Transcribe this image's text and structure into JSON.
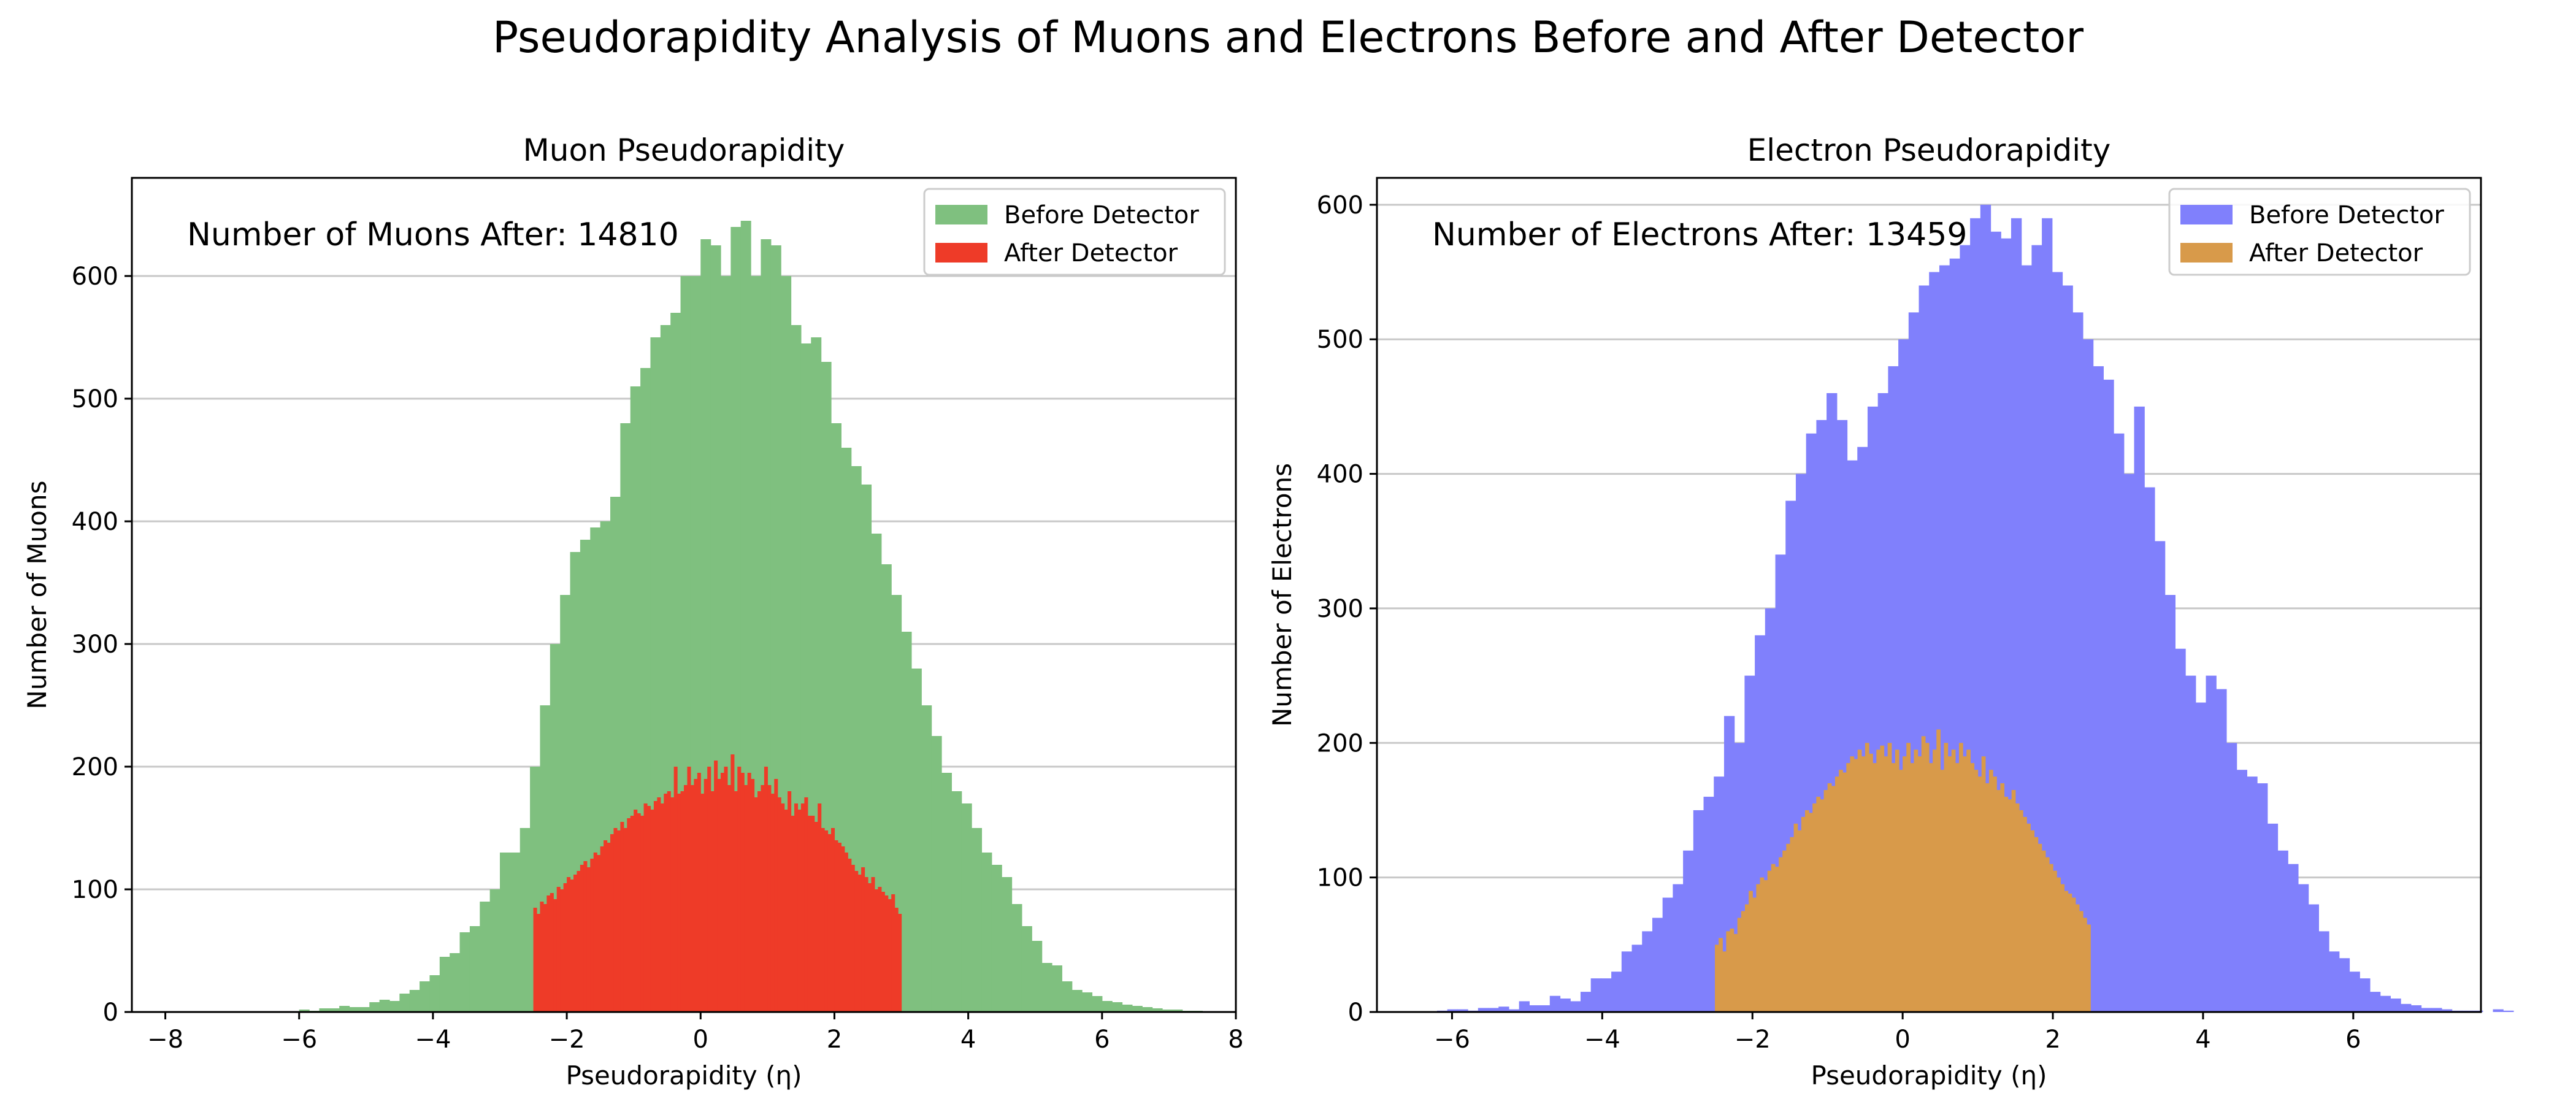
{
  "title": "Pseudorapidity Analysis of Muons and Electrons Before and After Detector",
  "chart_data": [
    {
      "type": "bar",
      "title": "Muon Pseudorapidity",
      "xlabel": "Pseudorapidity (η)",
      "ylabel": "Number of Muons",
      "xlim": [
        -8.5,
        8.0
      ],
      "ylim": [
        0,
        680
      ],
      "xticks": [
        -8,
        -6,
        -4,
        -2,
        0,
        2,
        4,
        6,
        8
      ],
      "yticks": [
        0,
        100,
        200,
        300,
        400,
        500,
        600
      ],
      "xtick_labels": [
        "−8",
        "−6",
        "−4",
        "−2",
        "0",
        "2",
        "4",
        "6",
        "8"
      ],
      "ytick_labels": [
        "0",
        "100",
        "200",
        "300",
        "400",
        "500",
        "600"
      ],
      "grid": "horizontal",
      "legend_position": "upper right",
      "annotation": "Number of Muons After: 14810",
      "series": [
        {
          "name": "Before Detector",
          "color": "#7fc07f",
          "bin_start": -6.0,
          "bin_width": 0.15,
          "values": [
            2,
            1,
            3,
            3,
            5,
            4,
            4,
            8,
            10,
            9,
            15,
            18,
            25,
            30,
            45,
            48,
            65,
            70,
            90,
            100,
            130,
            130,
            150,
            200,
            250,
            300,
            340,
            375,
            385,
            395,
            400,
            420,
            480,
            510,
            525,
            550,
            560,
            570,
            600,
            600,
            630,
            625,
            600,
            640,
            645,
            600,
            630,
            625,
            600,
            560,
            545,
            550,
            530,
            480,
            460,
            445,
            430,
            390,
            365,
            340,
            310,
            280,
            250,
            225,
            195,
            180,
            170,
            150,
            130,
            120,
            110,
            88,
            70,
            58,
            40,
            38,
            25,
            18,
            16,
            13,
            9,
            8,
            6,
            5,
            4,
            3,
            2,
            2,
            1,
            1
          ]
        },
        {
          "name": "After Detector",
          "color": "#ee3b28",
          "bin_start": -2.5,
          "bin_width": 0.05,
          "values": [
            85,
            80,
            90,
            88,
            95,
            97,
            92,
            102,
            100,
            105,
            110,
            108,
            112,
            115,
            120,
            123,
            118,
            125,
            130,
            128,
            135,
            140,
            138,
            145,
            150,
            148,
            155,
            150,
            158,
            160,
            165,
            162,
            160,
            170,
            168,
            165,
            172,
            175,
            170,
            178,
            180,
            175,
            200,
            178,
            180,
            185,
            200,
            185,
            190,
            195,
            178,
            190,
            200,
            180,
            205,
            190,
            195,
            200,
            185,
            210,
            180,
            200,
            195,
            185,
            195,
            190,
            175,
            180,
            185,
            200,
            185,
            178,
            190,
            175,
            170,
            165,
            180,
            160,
            170,
            165,
            170,
            175,
            160,
            160,
            155,
            170,
            150,
            148,
            145,
            150,
            140,
            138,
            135,
            130,
            125,
            120,
            115,
            112,
            118,
            110,
            105,
            110,
            100,
            102,
            98,
            95,
            92,
            96,
            85,
            80
          ]
        }
      ]
    },
    {
      "type": "bar",
      "title": "Electron Pseudorapidity",
      "xlabel": "Pseudorapidity (η)",
      "ylabel": "Number of Electrons",
      "xlim": [
        -7.0,
        7.7
      ],
      "ylim": [
        0,
        620
      ],
      "xticks": [
        -6,
        -4,
        -2,
        0,
        2,
        4,
        6
      ],
      "yticks": [
        0,
        100,
        200,
        300,
        400,
        500,
        600
      ],
      "xtick_labels": [
        "−6",
        "−4",
        "−2",
        "0",
        "2",
        "4",
        "6"
      ],
      "ytick_labels": [
        "0",
        "100",
        "200",
        "300",
        "400",
        "500",
        "600"
      ],
      "grid": "horizontal",
      "legend_position": "upper right",
      "annotation": "Number of Electrons After: 13459",
      "series": [
        {
          "name": "Before Detector",
          "color": "#8080fc",
          "bin_start": -6.2,
          "bin_width": 0.1365,
          "values": [
            1,
            2,
            2,
            1,
            3,
            3,
            4,
            2,
            8,
            5,
            5,
            12,
            10,
            8,
            15,
            25,
            25,
            30,
            45,
            50,
            60,
            70,
            85,
            95,
            120,
            150,
            160,
            175,
            220,
            200,
            250,
            280,
            300,
            340,
            380,
            400,
            430,
            440,
            460,
            440,
            410,
            420,
            450,
            460,
            480,
            500,
            520,
            540,
            550,
            555,
            560,
            570,
            590,
            600,
            580,
            575,
            590,
            555,
            570,
            590,
            550,
            540,
            520,
            500,
            480,
            470,
            430,
            400,
            450,
            390,
            350,
            310,
            270,
            250,
            230,
            250,
            240,
            200,
            180,
            175,
            170,
            140,
            120,
            110,
            95,
            80,
            60,
            45,
            40,
            30,
            25,
            15,
            12,
            10,
            6,
            5,
            3,
            3,
            2,
            1,
            1,
            1,
            0,
            2,
            1,
            0,
            0,
            0,
            0
          ]
        },
        {
          "name": "After Detector",
          "color": "#d89a4a",
          "bin_start": -2.5,
          "bin_width": 0.05,
          "values": [
            50,
            55,
            45,
            60,
            62,
            58,
            70,
            75,
            80,
            90,
            85,
            95,
            100,
            98,
            105,
            110,
            108,
            115,
            120,
            125,
            130,
            140,
            135,
            145,
            150,
            148,
            155,
            160,
            158,
            165,
            170,
            168,
            175,
            180,
            178,
            185,
            190,
            188,
            195,
            190,
            200,
            192,
            185,
            195,
            198,
            190,
            200,
            185,
            195,
            180,
            190,
            200,
            185,
            195,
            190,
            205,
            200,
            185,
            195,
            210,
            180,
            200,
            190,
            195,
            185,
            200,
            190,
            195,
            185,
            180,
            175,
            190,
            170,
            180,
            175,
            165,
            170,
            160,
            158,
            165,
            155,
            150,
            145,
            140,
            135,
            130,
            125,
            120,
            115,
            110,
            105,
            100,
            95,
            90,
            88,
            85,
            80,
            75,
            70,
            65
          ]
        }
      ]
    }
  ]
}
